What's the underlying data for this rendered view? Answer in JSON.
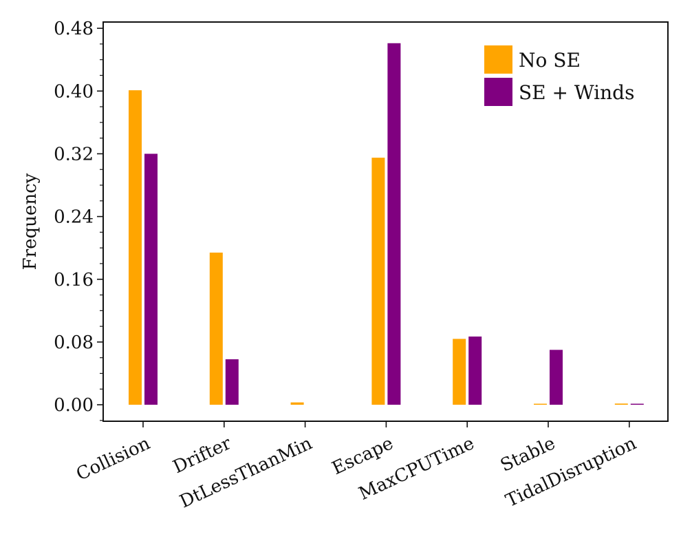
{
  "chart_data": {
    "type": "bar",
    "title": "",
    "xlabel": "",
    "ylabel": "Frequency",
    "categories": [
      "Collision",
      "Drifter",
      "DtLessThanMin",
      "Escape",
      "MaxCPUTime",
      "Stable",
      "TidalDisruption"
    ],
    "series": [
      {
        "name": "No SE",
        "color": "#FFA500",
        "values": [
          0.401,
          0.194,
          0.003,
          0.315,
          0.084,
          0.0005,
          0.0015
        ]
      },
      {
        "name": "SE + Winds",
        "color": "#800080",
        "values": [
          0.32,
          0.058,
          0.0,
          0.461,
          0.087,
          0.07,
          0.0012
        ]
      }
    ],
    "ylim": [
      -0.021,
      0.488
    ],
    "yticks": [
      "0.00",
      "0.08",
      "0.16",
      "0.24",
      "0.32",
      "0.40",
      "0.48"
    ],
    "ytick_values": [
      0.0,
      0.08,
      0.16,
      0.24,
      0.32,
      0.4,
      0.48
    ],
    "y_minor_step": 0.02,
    "grid": false,
    "legend_position": "top-right"
  }
}
